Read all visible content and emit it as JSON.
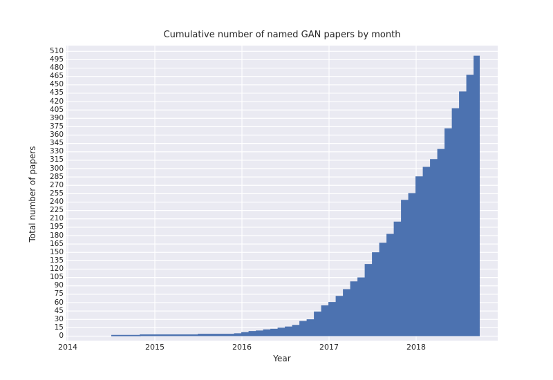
{
  "figure": {
    "title": "Cumulative number of named GAN papers by month",
    "xlabel": "Year",
    "ylabel": "Total number of papers",
    "colors": {
      "figure_bg": "#ffffff",
      "plot_bg": "#eaeaf2",
      "grid": "#ffffff",
      "area_fill": "#4c72b0",
      "area_line": "#4c72b0",
      "text": "#262626"
    },
    "x_ticks": [
      "2014",
      "2015",
      "2016",
      "2017",
      "2018"
    ],
    "y_ticks": [
      0,
      15,
      30,
      45,
      60,
      75,
      90,
      105,
      120,
      135,
      150,
      165,
      180,
      195,
      210,
      225,
      240,
      255,
      270,
      285,
      300,
      315,
      330,
      345,
      360,
      375,
      390,
      405,
      420,
      435,
      450,
      465,
      480,
      495,
      510
    ]
  },
  "chart_data": {
    "type": "area",
    "step_style": "post",
    "title": "Cumulative number of named GAN papers by month",
    "xlabel": "Year",
    "ylabel": "Total number of papers",
    "grid": true,
    "legend": "none",
    "ylim": [
      0,
      520
    ],
    "x_axis_years": [
      2014,
      2015,
      2016,
      2017,
      2018
    ],
    "y_tick_step": 15,
    "series_name": "Total number of papers (cumulative)",
    "months": [
      "2014-07",
      "2014-08",
      "2014-09",
      "2014-10",
      "2014-11",
      "2014-12",
      "2015-01",
      "2015-02",
      "2015-03",
      "2015-04",
      "2015-05",
      "2015-06",
      "2015-07",
      "2015-08",
      "2015-09",
      "2015-10",
      "2015-11",
      "2015-12",
      "2016-01",
      "2016-02",
      "2016-03",
      "2016-04",
      "2016-05",
      "2016-06",
      "2016-07",
      "2016-08",
      "2016-09",
      "2016-10",
      "2016-11",
      "2016-12",
      "2017-01",
      "2017-02",
      "2017-03",
      "2017-04",
      "2017-05",
      "2017-06",
      "2017-07",
      "2017-08",
      "2017-09",
      "2017-10",
      "2017-11",
      "2017-12",
      "2018-01",
      "2018-02",
      "2018-03",
      "2018-04",
      "2018-05",
      "2018-06",
      "2018-07",
      "2018-08",
      "2018-09"
    ],
    "values": [
      1,
      1,
      1,
      1,
      2,
      2,
      2,
      2,
      2,
      2,
      2,
      2,
      3,
      3,
      3,
      3,
      3,
      4,
      6,
      8,
      9,
      11,
      12,
      14,
      16,
      19,
      26,
      29,
      43,
      54,
      60,
      71,
      83,
      97,
      104,
      128,
      149,
      166,
      182,
      204,
      243,
      255,
      285,
      302,
      316,
      334,
      371,
      407,
      437,
      467,
      501
    ]
  }
}
